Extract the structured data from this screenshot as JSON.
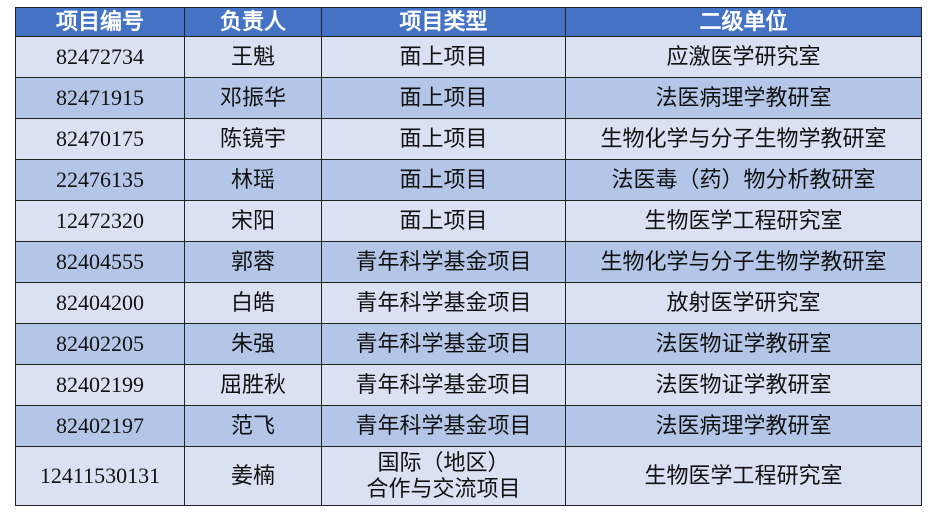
{
  "colors": {
    "header": "#4472C4",
    "row_light": "#D9E1F2",
    "row_dark": "#B4C6E7"
  },
  "headers": [
    "项目编号",
    "负责人",
    "项目类型",
    "二级单位"
  ],
  "rows": [
    {
      "id": "82472734",
      "person": "王魁",
      "type": "面上项目",
      "unit": "应激医学研究室"
    },
    {
      "id": "82471915",
      "person": "邓振华",
      "type": "面上项目",
      "unit": "法医病理学教研室"
    },
    {
      "id": "82470175",
      "person": "陈镜宇",
      "type": "面上项目",
      "unit": "生物化学与分子生物学教研室"
    },
    {
      "id": "22476135",
      "person": "林瑶",
      "type": "面上项目",
      "unit": "法医毒（药）物分析教研室"
    },
    {
      "id": "12472320",
      "person": "宋阳",
      "type": "面上项目",
      "unit": "生物医学工程研究室"
    },
    {
      "id": "82404555",
      "person": "郭蓉",
      "type": "青年科学基金项目",
      "unit": "生物化学与分子生物学教研室"
    },
    {
      "id": "82404200",
      "person": "白皓",
      "type": "青年科学基金项目",
      "unit": "放射医学研究室"
    },
    {
      "id": "82402205",
      "person": "朱强",
      "type": "青年科学基金项目",
      "unit": "法医物证学教研室"
    },
    {
      "id": "82402199",
      "person": "屈胜秋",
      "type": "青年科学基金项目",
      "unit": "法医物证学教研室"
    },
    {
      "id": "82402197",
      "person": "范飞",
      "type": "青年科学基金项目",
      "unit": "法医病理学教研室"
    },
    {
      "id": "12411530131",
      "person": "姜楠",
      "type": "国际（地区）",
      "type2": "合作与交流项目",
      "unit": "生物医学工程研究室"
    }
  ]
}
